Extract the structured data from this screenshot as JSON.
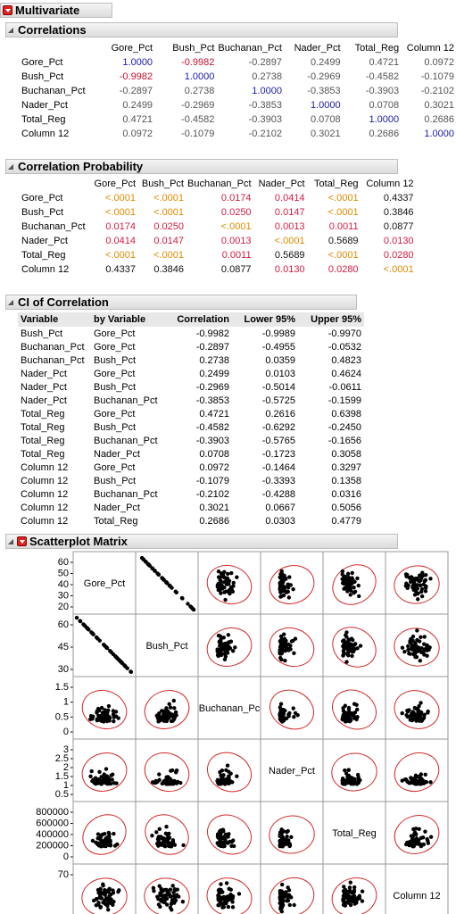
{
  "multivariate": {
    "title": "Multivariate"
  },
  "correlations": {
    "title": "Correlations",
    "columns": [
      "Gore_Pct",
      "Bush_Pct",
      "Buchanan_Pct",
      "Nader_Pct",
      "Total_Reg",
      "Column 12"
    ],
    "rows": [
      {
        "name": "Gore_Pct",
        "values": [
          "1.0000",
          "-0.9982",
          "-0.2897",
          "0.2499",
          "0.4721",
          "0.0972"
        ]
      },
      {
        "name": "Bush_Pct",
        "values": [
          "-0.9982",
          "1.0000",
          "0.2738",
          "-0.2969",
          "-0.4582",
          "-0.1079"
        ]
      },
      {
        "name": "Buchanan_Pct",
        "values": [
          "-0.2897",
          "0.2738",
          "1.0000",
          "-0.3853",
          "-0.3903",
          "-0.2102"
        ]
      },
      {
        "name": "Nader_Pct",
        "values": [
          "0.2499",
          "-0.2969",
          "-0.3853",
          "1.0000",
          "0.0708",
          "0.3021"
        ]
      },
      {
        "name": "Total_Reg",
        "values": [
          "0.4721",
          "-0.4582",
          "-0.3903",
          "0.0708",
          "1.0000",
          "0.2686"
        ]
      },
      {
        "name": "Column 12",
        "values": [
          "0.0972",
          "-0.1079",
          "-0.2102",
          "0.3021",
          "0.2686",
          "1.0000"
        ]
      }
    ],
    "colors": {
      "diag": "#1a1aa8",
      "strong_neg": "#c8102e",
      "other": "#555555"
    }
  },
  "correlation_probability": {
    "title": "Correlation Probability",
    "columns": [
      "Gore_Pct",
      "Bush_Pct",
      "Buchanan_Pct",
      "Nader_Pct",
      "Total_Reg",
      "Column 12"
    ],
    "rows": [
      {
        "name": "Gore_Pct",
        "values": [
          "<.0001",
          "<.0001",
          "0.0174",
          "0.0414",
          "<.0001",
          "0.4337"
        ]
      },
      {
        "name": "Bush_Pct",
        "values": [
          "<.0001",
          "<.0001",
          "0.0250",
          "0.0147",
          "<.0001",
          "0.3846"
        ]
      },
      {
        "name": "Buchanan_Pct",
        "values": [
          "0.0174",
          "0.0250",
          "<.0001",
          "0.0013",
          "0.0011",
          "0.0877"
        ]
      },
      {
        "name": "Nader_Pct",
        "values": [
          "0.0414",
          "0.0147",
          "0.0013",
          "<.0001",
          "0.5689",
          "0.0130"
        ]
      },
      {
        "name": "Total_Reg",
        "values": [
          "<.0001",
          "<.0001",
          "0.0011",
          "0.5689",
          "<.0001",
          "0.0280"
        ]
      },
      {
        "name": "Column 12",
        "values": [
          "0.4337",
          "0.3846",
          "0.0877",
          "0.0130",
          "0.0280",
          "<.0001"
        ]
      }
    ],
    "colors": {
      "very_sig": "#e08a00",
      "sig": "#d31d41",
      "ns": "#111111"
    }
  },
  "ci_of_correlation": {
    "title": "CI of Correlation",
    "headers": [
      "Variable",
      "by Variable",
      "Correlation",
      "Lower 95%",
      "Upper 95%"
    ],
    "rows": [
      [
        "Bush_Pct",
        "Gore_Pct",
        "-0.9982",
        "-0.9989",
        "-0.9970"
      ],
      [
        "Buchanan_Pct",
        "Gore_Pct",
        "-0.2897",
        "-0.4955",
        "-0.0532"
      ],
      [
        "Buchanan_Pct",
        "Bush_Pct",
        "0.2738",
        "0.0359",
        "0.4823"
      ],
      [
        "Nader_Pct",
        "Gore_Pct",
        "0.2499",
        "0.0103",
        "0.4624"
      ],
      [
        "Nader_Pct",
        "Bush_Pct",
        "-0.2969",
        "-0.5014",
        "-0.0611"
      ],
      [
        "Nader_Pct",
        "Buchanan_Pct",
        "-0.3853",
        "-0.5725",
        "-0.1599"
      ],
      [
        "Total_Reg",
        "Gore_Pct",
        "0.4721",
        "0.2616",
        "0.6398"
      ],
      [
        "Total_Reg",
        "Bush_Pct",
        "-0.4582",
        "-0.6292",
        "-0.2450"
      ],
      [
        "Total_Reg",
        "Buchanan_Pct",
        "-0.3903",
        "-0.5765",
        "-0.1656"
      ],
      [
        "Total_Reg",
        "Nader_Pct",
        "0.0708",
        "-0.1723",
        "0.3058"
      ],
      [
        "Column 12",
        "Gore_Pct",
        "0.0972",
        "-0.1464",
        "0.3297"
      ],
      [
        "Column 12",
        "Bush_Pct",
        "-0.1079",
        "-0.3393",
        "0.1358"
      ],
      [
        "Column 12",
        "Buchanan_Pct",
        "-0.2102",
        "-0.4288",
        "0.0316"
      ],
      [
        "Column 12",
        "Nader_Pct",
        "0.3021",
        "0.0667",
        "0.5056"
      ],
      [
        "Column 12",
        "Total_Reg",
        "0.2686",
        "0.0303",
        "0.4779"
      ]
    ]
  },
  "scatterplot_matrix": {
    "title": "Scatterplot Matrix",
    "variables": [
      "Gore_Pct",
      "Bush_Pct",
      "Buchanan_Pct",
      "Nader_Pct",
      "Total_Reg",
      "Column 12"
    ],
    "diag_labels": [
      "Gore_Pct",
      "Bush_Pct",
      "Buchanan_Pc",
      "Nader_Pct",
      "Total_Reg",
      "Column 12"
    ],
    "ticks": [
      [
        "60",
        "50",
        "40",
        "30",
        "20"
      ],
      [
        "60",
        "45",
        "30"
      ],
      [
        "1.5",
        "1",
        "0.5",
        "0"
      ],
      [
        "3",
        "2.5",
        "2",
        "1.5",
        "1",
        "0.5"
      ],
      [
        "800000",
        "600000",
        "400000",
        "200000",
        "0"
      ],
      [
        "70",
        "55"
      ]
    ],
    "ellipse_color": "#d42a2a"
  }
}
